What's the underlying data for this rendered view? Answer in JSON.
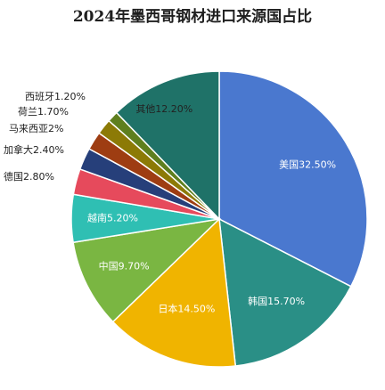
{
  "chart_data": {
    "type": "pie",
    "title": "2024年墨西哥钢材进口来源国占比",
    "slices": [
      {
        "label": "美国",
        "value": 32.5,
        "text": "美国32.50%",
        "color": "#4a78cf",
        "label_color": "#ffffff"
      },
      {
        "label": "韩国",
        "value": 15.7,
        "text": "韩国15.70%",
        "color": "#2a8f86",
        "label_color": "#ffffff"
      },
      {
        "label": "日本",
        "value": 14.5,
        "text": "日本14.50%",
        "color": "#f0b400",
        "label_color": "#ffffff"
      },
      {
        "label": "中国",
        "value": 9.7,
        "text": "中国9.70%",
        "color": "#7ab642",
        "label_color": "#ffffff"
      },
      {
        "label": "越南",
        "value": 5.2,
        "text": "越南5.20%",
        "color": "#2fbfb3",
        "label_color": "#ffffff"
      },
      {
        "label": "德国",
        "value": 2.8,
        "text": "德国2.80%",
        "color": "#e64a5c",
        "label_color": "#222222"
      },
      {
        "label": "加拿大",
        "value": 2.4,
        "text": "加拿大2.40%",
        "color": "#263f7a",
        "label_color": "#222222"
      },
      {
        "label": "马来西亚",
        "value": 2.0,
        "text": "马来西亚2%",
        "color": "#9e3d12",
        "label_color": "#222222"
      },
      {
        "label": "荷兰",
        "value": 1.7,
        "text": "荷兰1.70%",
        "color": "#8c7a06",
        "label_color": "#222222"
      },
      {
        "label": "西班牙",
        "value": 1.2,
        "text": "西班牙1.20%",
        "color": "#5f7f1e",
        "label_color": "#222222"
      },
      {
        "label": "其他",
        "value": 12.2,
        "text": "其他12.20%",
        "color": "#1f7268",
        "label_color": "#222222"
      }
    ]
  }
}
